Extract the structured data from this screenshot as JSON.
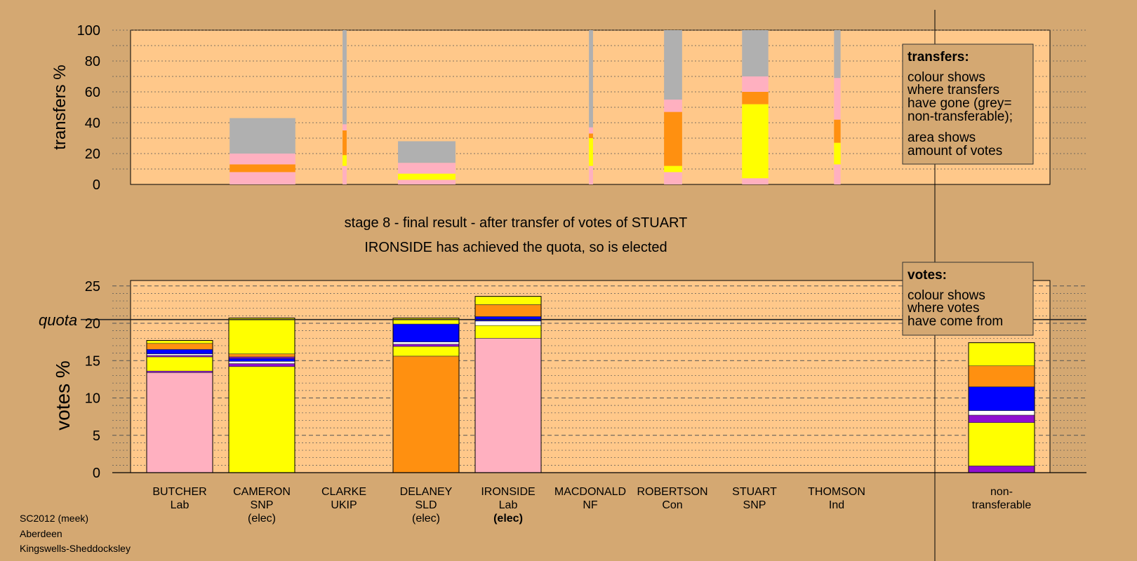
{
  "colors": {
    "background": "#d4a872",
    "plot_bg": "#ffc88a",
    "Lab": "#ffb0c0",
    "SNP": "#ffff00",
    "SLD": "#ff9010",
    "Con": "#0000ff",
    "white": "#ffffff",
    "UKIP": "#9010d0",
    "grey": "#b0b0b0"
  },
  "header": {
    "stage_line": "stage 8 - final result - after transfer of votes of STUART",
    "result_line": "IRONSIDE has achieved the quota, so is elected"
  },
  "legend_transfers": {
    "title": "transfers:",
    "line1": "colour shows",
    "line2": "where transfers",
    "line3": "have gone (grey=",
    "line4": "non-transferable);",
    "line5": "area shows",
    "line6": "amount of votes"
  },
  "legend_votes": {
    "title": "votes:",
    "line1": "colour shows",
    "line2": "where votes",
    "line3": "have come from"
  },
  "footer": {
    "line1": "SC2012 (meek)",
    "line2": "Aberdeen",
    "line3": "Kingswells-Sheddocksley"
  },
  "chart_data": [
    {
      "type": "bar",
      "ylabel": "transfers %",
      "ylim": [
        0,
        100
      ],
      "yticks": [
        0,
        20,
        40,
        60,
        80,
        100
      ],
      "grid": true,
      "note": "stacked transfer columns; column width proportional to votes transferred",
      "columns": [
        {
          "width_rel": 0.8,
          "segments": [
            [
              "Lab",
              8
            ],
            [
              "SLD",
              5
            ],
            [
              "Lab",
              7
            ],
            [
              "grey",
              23
            ]
          ]
        },
        {
          "width_rel": 0.05,
          "segments": [
            [
              "Lab",
              12
            ],
            [
              "SNP",
              7
            ],
            [
              "SLD",
              16
            ],
            [
              "Lab",
              4
            ],
            [
              "grey",
              61
            ]
          ]
        },
        {
          "width_rel": 0.7,
          "segments": [
            [
              "Lab",
              3
            ],
            [
              "SNP",
              4
            ],
            [
              "Lab",
              7
            ],
            [
              "grey",
              14
            ]
          ]
        },
        {
          "width_rel": 0.05,
          "segments": [
            [
              "Lab",
              12
            ],
            [
              "SNP",
              18
            ],
            [
              "SLD",
              3
            ],
            [
              "Lab",
              4
            ],
            [
              "grey",
              63
            ]
          ]
        },
        {
          "width_rel": 0.22,
          "segments": [
            [
              "Lab",
              8
            ],
            [
              "SNP",
              4
            ],
            [
              "SLD",
              35
            ],
            [
              "Lab",
              8
            ],
            [
              "grey",
              45
            ]
          ]
        },
        {
          "width_rel": 0.32,
          "segments": [
            [
              "Lab",
              4
            ],
            [
              "SNP",
              48
            ],
            [
              "SLD",
              8
            ],
            [
              "Lab",
              10
            ],
            [
              "grey",
              30
            ]
          ]
        },
        {
          "width_rel": 0.08,
          "segments": [
            [
              "Lab",
              13
            ],
            [
              "SNP",
              14
            ],
            [
              "SLD",
              15
            ],
            [
              "Lab",
              27
            ],
            [
              "grey",
              31
            ]
          ]
        }
      ]
    },
    {
      "type": "bar",
      "ylabel": "votes %",
      "ylim": [
        0,
        25
      ],
      "yticks": [
        0,
        5,
        10,
        15,
        20,
        25
      ],
      "quota_label": "quota",
      "quota": 20.5,
      "grid": true,
      "categories": [
        {
          "name": "BUTCHER",
          "party": "Lab",
          "elec": ""
        },
        {
          "name": "CAMERON",
          "party": "SNP",
          "elec": "(elec)"
        },
        {
          "name": "CLARKE",
          "party": "UKIP",
          "elec": ""
        },
        {
          "name": "DELANEY",
          "party": "SLD",
          "elec": "(elec)"
        },
        {
          "name": "IRONSIDE",
          "party": "Lab",
          "elec": "(elec)"
        },
        {
          "name": "MACDONALD",
          "party": "NF",
          "elec": ""
        },
        {
          "name": "ROBERTSON",
          "party": "Con",
          "elec": ""
        },
        {
          "name": "STUART",
          "party": "SNP",
          "elec": ""
        },
        {
          "name": "THOMSON",
          "party": "Ind",
          "elec": ""
        }
      ],
      "nontransferable_label": [
        "non-",
        "transferable"
      ],
      "stacks": [
        [
          [
            "Lab",
            13.4
          ],
          [
            "UKIP",
            0.2
          ],
          [
            "SNP",
            1.9
          ],
          [
            "UKIP",
            0.2
          ],
          [
            "white",
            0.2
          ],
          [
            "Con",
            0.6
          ],
          [
            "SLD",
            0.8
          ],
          [
            "SNP",
            0.4
          ]
        ],
        [
          [
            "SNP",
            14.2
          ],
          [
            "UKIP",
            0.4
          ],
          [
            "white",
            0.3
          ],
          [
            "Con",
            0.4
          ],
          [
            "UKIP",
            0.2
          ],
          [
            "SLD",
            0.4
          ],
          [
            "SNP",
            4.8
          ]
        ],
        [],
        [
          [
            "SLD",
            15.6
          ],
          [
            "SNP",
            1.3
          ],
          [
            "UKIP",
            0.3
          ],
          [
            "white",
            0.3
          ],
          [
            "Con",
            2.4
          ],
          [
            "SNP",
            0.8
          ]
        ],
        [
          [
            "Lab",
            18.0
          ],
          [
            "SNP",
            1.7
          ],
          [
            "white",
            0.6
          ],
          [
            "Con",
            0.6
          ],
          [
            "SLD",
            1.6
          ],
          [
            "SNP",
            1.1
          ]
        ],
        [],
        [],
        [],
        []
      ],
      "nontransferable": [
        [
          "UKIP",
          0.9
        ],
        [
          "SNP",
          5.8
        ],
        [
          "UKIP",
          1.0
        ],
        [
          "white",
          0.6
        ],
        [
          "Con",
          3.2
        ],
        [
          "SLD",
          2.8
        ],
        [
          "SNP",
          3.1
        ]
      ]
    }
  ]
}
